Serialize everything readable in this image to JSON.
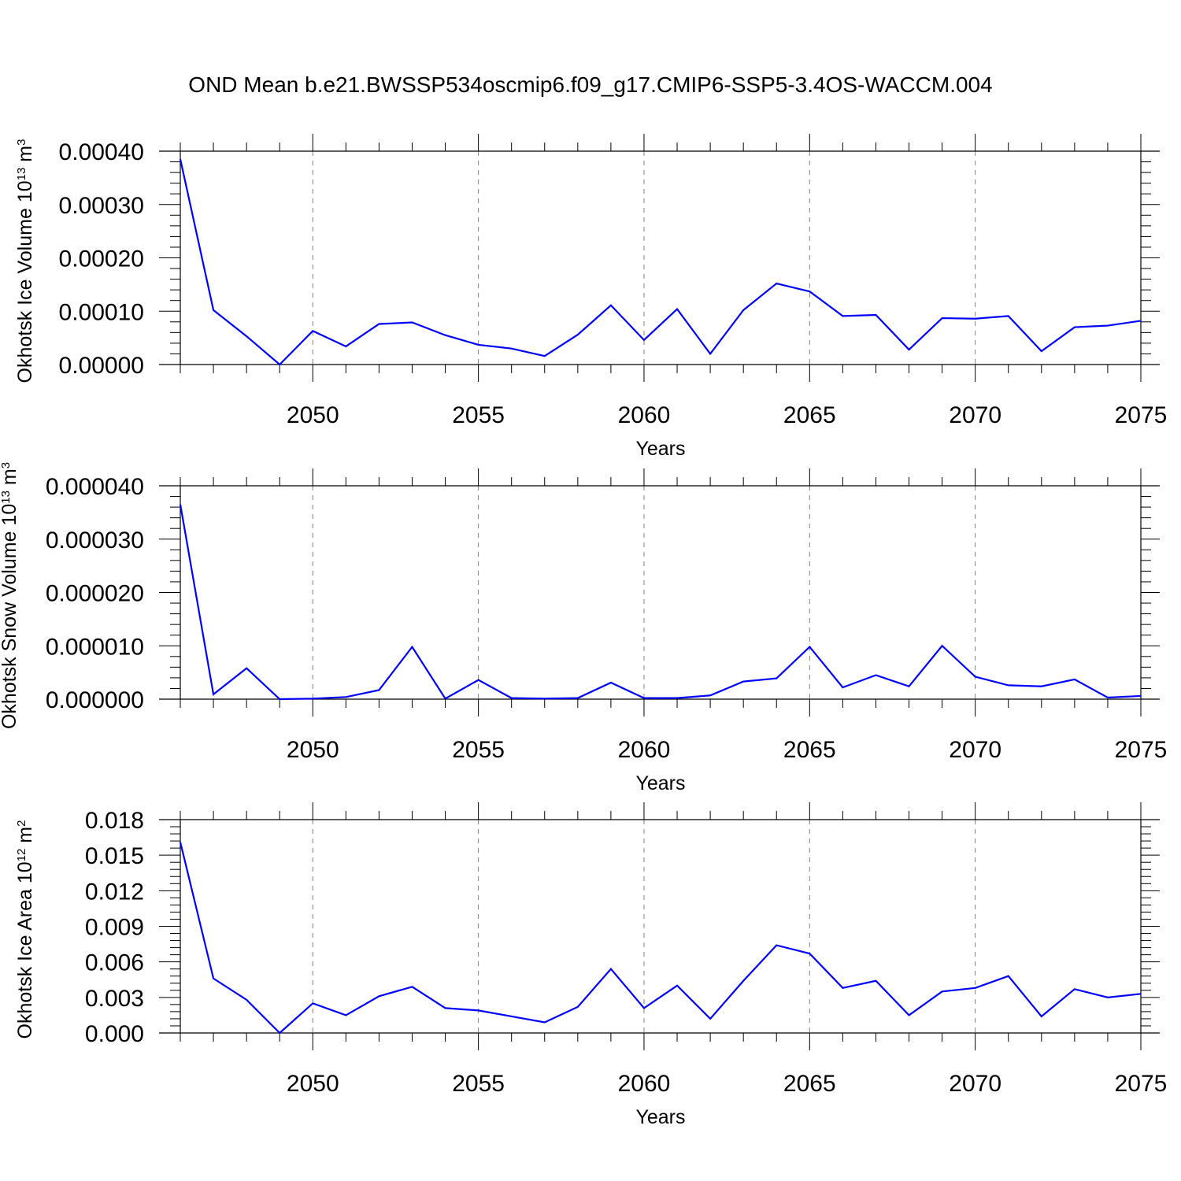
{
  "title": "OND Mean b.e21.BWSSP534oscmip6.f09_g17.CMIP6-SSP5-3.4OS-WACCM.004",
  "colors": {
    "series": "#0000ff",
    "axes": "#000000",
    "grid": "#808080",
    "background": "#ffffff"
  },
  "chart_data": [
    {
      "type": "line",
      "ylabel": "Okhotsk Ice Volume",
      "ylabel_unit_base": "10",
      "ylabel_unit_exp": "13",
      "ylabel_unit": "m",
      "ylabel_unit_power": "3",
      "xlabel": "Years",
      "xlim": [
        2046,
        2075
      ],
      "ylim": [
        0,
        0.0004
      ],
      "yticks": [
        "0.00000",
        "0.00010",
        "0.00020",
        "0.00030",
        "0.00040"
      ],
      "ytick_values": [
        0,
        0.0001,
        0.0002,
        0.0003,
        0.0004
      ],
      "xticks": [
        2050,
        2055,
        2060,
        2065,
        2070,
        2075
      ],
      "xtick_labels": [
        "2050",
        "2055",
        "2060",
        "2065",
        "2070",
        "2075"
      ],
      "grid": "vertical dashed at major x ticks",
      "x": [
        2046,
        2047,
        2048,
        2049,
        2050,
        2051,
        2052,
        2053,
        2054,
        2055,
        2056,
        2057,
        2058,
        2059,
        2060,
        2061,
        2062,
        2063,
        2064,
        2065,
        2066,
        2067,
        2068,
        2069,
        2070,
        2071,
        2072,
        2073,
        2074,
        2075
      ],
      "values": [
        0.000385,
        0.000102,
        5.3e-05,
        0.0,
        6.3e-05,
        3.4e-05,
        7.6e-05,
        7.9e-05,
        5.5e-05,
        3.7e-05,
        3e-05,
        1.6e-05,
        5.6e-05,
        0.000111,
        4.6e-05,
        0.000104,
        2e-05,
        0.000102,
        0.000152,
        0.000137,
        9.1e-05,
        9.3e-05,
        2.8e-05,
        8.7e-05,
        8.6e-05,
        9.1e-05,
        2.5e-05,
        7e-05,
        7.3e-05,
        8.2e-05
      ]
    },
    {
      "type": "line",
      "ylabel": "Okhotsk Snow Volume",
      "ylabel_unit_base": "10",
      "ylabel_unit_exp": "13",
      "ylabel_unit": "m",
      "ylabel_unit_power": "3",
      "xlabel": "Years",
      "xlim": [
        2046,
        2075
      ],
      "ylim": [
        0,
        4e-05
      ],
      "yticks": [
        "0.000000",
        "0.000010",
        "0.000020",
        "0.000030",
        "0.000040"
      ],
      "ytick_values": [
        0,
        1e-05,
        2e-05,
        3e-05,
        4e-05
      ],
      "xticks": [
        2050,
        2055,
        2060,
        2065,
        2070,
        2075
      ],
      "xtick_labels": [
        "2050",
        "2055",
        "2060",
        "2065",
        "2070",
        "2075"
      ],
      "grid": "vertical dashed at major x ticks",
      "x": [
        2046,
        2047,
        2048,
        2049,
        2050,
        2051,
        2052,
        2053,
        2054,
        2055,
        2056,
        2057,
        2058,
        2059,
        2060,
        2061,
        2062,
        2063,
        2064,
        2065,
        2066,
        2067,
        2068,
        2069,
        2070,
        2071,
        2072,
        2073,
        2074,
        2075
      ],
      "values": [
        3.65e-05,
        9e-07,
        5.8e-06,
        0.0,
        1e-07,
        4e-07,
        1.7e-06,
        9.8e-06,
        1e-07,
        3.6e-06,
        2e-07,
        1e-07,
        2e-07,
        3.1e-06,
        2e-07,
        2e-07,
        7e-07,
        3.3e-06,
        3.9e-06,
        9.8e-06,
        2.2e-06,
        4.5e-06,
        2.4e-06,
        1e-05,
        4.2e-06,
        2.6e-06,
        2.4e-06,
        3.7e-06,
        3e-07,
        6e-07
      ]
    },
    {
      "type": "line",
      "ylabel": "Okhotsk Ice Area",
      "ylabel_unit_base": "10",
      "ylabel_unit_exp": "12",
      "ylabel_unit": "m",
      "ylabel_unit_power": "2",
      "xlabel": "Years",
      "xlim": [
        2046,
        2075
      ],
      "ylim": [
        0,
        0.018
      ],
      "yticks": [
        "0.000",
        "0.003",
        "0.006",
        "0.009",
        "0.012",
        "0.015",
        "0.018"
      ],
      "ytick_values": [
        0,
        0.003,
        0.006,
        0.009,
        0.012,
        0.015,
        0.018
      ],
      "xticks": [
        2050,
        2055,
        2060,
        2065,
        2070,
        2075
      ],
      "xtick_labels": [
        "2050",
        "2055",
        "2060",
        "2065",
        "2070",
        "2075"
      ],
      "grid": "vertical dashed at major x ticks",
      "x": [
        2046,
        2047,
        2048,
        2049,
        2050,
        2051,
        2052,
        2053,
        2054,
        2055,
        2056,
        2057,
        2058,
        2059,
        2060,
        2061,
        2062,
        2063,
        2064,
        2065,
        2066,
        2067,
        2068,
        2069,
        2070,
        2071,
        2072,
        2073,
        2074,
        2075
      ],
      "values": [
        0.0161,
        0.0046,
        0.0028,
        0.0,
        0.0025,
        0.0015,
        0.0031,
        0.0039,
        0.0021,
        0.0019,
        0.0014,
        0.0009,
        0.0022,
        0.0054,
        0.0021,
        0.004,
        0.0012,
        0.0044,
        0.0074,
        0.0067,
        0.0038,
        0.0044,
        0.0015,
        0.0035,
        0.0038,
        0.0048,
        0.0014,
        0.0037,
        0.003,
        0.0033
      ]
    }
  ]
}
